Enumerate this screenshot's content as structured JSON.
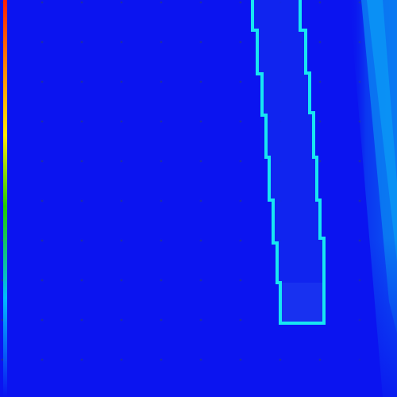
{
  "scene": {
    "background_color": "#0b14f0",
    "dot_color": "#1b2ab0",
    "outline_color": "#17e6f2",
    "glow_color": "#0b7cf2",
    "colormap": [
      "#ff1e00",
      "#ff8c00",
      "#ffe600",
      "#22cc00",
      "#00bbff",
      "#0b14f0"
    ]
  }
}
